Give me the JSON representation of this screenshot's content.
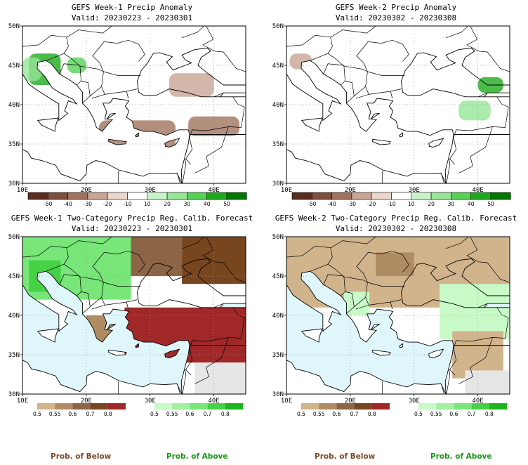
{
  "chart_data": [
    {
      "type": "heatmap",
      "title": "GEFS Week-1 Precip Anomaly",
      "subtitle": "Valid: 20230223 - 20230301",
      "x_ticks": [
        "10E",
        "20E",
        "30E",
        "40E"
      ],
      "y_ticks": [
        "50N",
        "45N",
        "40N",
        "35N",
        "30N"
      ],
      "xlim": [
        10,
        45
      ],
      "ylim": [
        30,
        50
      ],
      "colorbar_labels": [
        "-50",
        "-40",
        "-30",
        "-20",
        "-10",
        "10",
        "20",
        "30",
        "40",
        "50"
      ],
      "colorbar_colors": [
        "#5a2e1e",
        "#7d4f3c",
        "#a0735e",
        "#c8a595",
        "#ebd6cc",
        "#ffffff",
        "#c8f5c8",
        "#96e696",
        "#55d255",
        "#1eaa1e",
        "#007800"
      ],
      "regions": [
        {
          "lon": [
            11,
            16
          ],
          "lat": [
            42.5,
            46.5
          ],
          "level": 30
        },
        {
          "lon": [
            17,
            20
          ],
          "lat": [
            44,
            46
          ],
          "level": 20
        },
        {
          "lon": [
            10,
            13
          ],
          "lat": [
            43,
            46
          ],
          "level": 10
        },
        {
          "lon": [
            22,
            34
          ],
          "lat": [
            33,
            38
          ],
          "level": -20
        },
        {
          "lon": [
            36,
            44
          ],
          "lat": [
            36,
            38.5
          ],
          "level": -20
        },
        {
          "lon": [
            33,
            40
          ],
          "lat": [
            41,
            44
          ],
          "level": -10
        }
      ]
    },
    {
      "type": "heatmap",
      "title": "GEFS Week-2 Precip Anomaly",
      "subtitle": "Valid: 20230302 - 20230308",
      "x_ticks": [
        "10E",
        "20E",
        "30E",
        "40E"
      ],
      "y_ticks": [
        "50N",
        "45N",
        "40N",
        "35N",
        "30N"
      ],
      "xlim": [
        10,
        45
      ],
      "ylim": [
        30,
        50
      ],
      "colorbar_labels": [
        "-50",
        "-40",
        "-30",
        "-20",
        "-10",
        "10",
        "20",
        "30",
        "40",
        "50"
      ],
      "colorbar_colors": [
        "#5a2e1e",
        "#7d4f3c",
        "#a0735e",
        "#c8a595",
        "#ebd6cc",
        "#ffffff",
        "#c8f5c8",
        "#96e696",
        "#55d255",
        "#1eaa1e",
        "#007800"
      ],
      "regions": [
        {
          "lon": [
            40,
            44
          ],
          "lat": [
            41.5,
            43.5
          ],
          "level": 30
        },
        {
          "lon": [
            37,
            42
          ],
          "lat": [
            38,
            40.5
          ],
          "level": 10
        },
        {
          "lon": [
            10.5,
            14
          ],
          "lat": [
            44.5,
            46.5
          ],
          "level": -10
        }
      ]
    },
    {
      "type": "heatmap",
      "title": "GEFS Week-1 Two-Category Precip Reg. Calib. Forecast",
      "subtitle": "Valid: 20230223 - 20230301",
      "x_ticks": [
        "10E",
        "20E",
        "30E",
        "40E"
      ],
      "y_ticks": [
        "50N",
        "45N",
        "40N",
        "35N",
        "30N"
      ],
      "xlim": [
        10,
        45
      ],
      "ylim": [
        30,
        50
      ],
      "colorbar_below_labels": [
        "0.5",
        "0.55",
        "0.6",
        "0.7",
        "0.8"
      ],
      "colorbar_below_colors": [
        "#d2b48c",
        "#b08c64",
        "#8c6446",
        "#78461e",
        "#a02828"
      ],
      "colorbar_above_labels": [
        "0.5",
        "0.55",
        "0.6",
        "0.7",
        "0.8"
      ],
      "colorbar_above_colors": [
        "#c8fac8",
        "#a0f0a0",
        "#78e678",
        "#46d246",
        "#1eb41e"
      ],
      "regions": [
        {
          "lon": [
            10,
            27
          ],
          "lat": [
            42,
            50
          ],
          "category": "above",
          "prob": 0.6
        },
        {
          "lon": [
            11,
            16
          ],
          "lat": [
            43,
            47
          ],
          "category": "above",
          "prob": 0.7
        },
        {
          "lon": [
            27,
            35
          ],
          "lat": [
            45,
            50
          ],
          "category": "below",
          "prob": 0.6
        },
        {
          "lon": [
            35,
            45
          ],
          "lat": [
            44,
            50
          ],
          "category": "below",
          "prob": 0.7
        },
        {
          "lon": [
            26,
            45
          ],
          "lat": [
            34,
            41
          ],
          "category": "below",
          "prob": 0.8
        },
        {
          "lon": [
            20,
            26
          ],
          "lat": [
            36,
            40
          ],
          "category": "below",
          "prob": 0.55
        },
        {
          "lon": [
            37,
            45
          ],
          "lat": [
            30,
            34
          ],
          "category": "none",
          "prob": 0
        }
      ]
    },
    {
      "type": "heatmap",
      "title": "GEFS Week-2 Two-Category Precip Reg. Calib. Forecast",
      "subtitle": "Valid: 20230302 - 20230308",
      "x_ticks": [
        "10E",
        "20E",
        "30E",
        "40E"
      ],
      "y_ticks": [
        "50N",
        "45N",
        "40N",
        "35N",
        "30N"
      ],
      "xlim": [
        10,
        45
      ],
      "ylim": [
        30,
        50
      ],
      "colorbar_below_labels": [
        "0.5",
        "0.55",
        "0.6",
        "0.7",
        "0.8"
      ],
      "colorbar_below_colors": [
        "#d2b48c",
        "#b08c64",
        "#8c6446",
        "#78461e",
        "#a02828"
      ],
      "colorbar_above_labels": [
        "0.5",
        "0.55",
        "0.6",
        "0.7",
        "0.8"
      ],
      "colorbar_above_colors": [
        "#c8fac8",
        "#a0f0a0",
        "#78e678",
        "#46d246",
        "#1eb41e"
      ],
      "regions": [
        {
          "lon": [
            10,
            45
          ],
          "lat": [
            41,
            50
          ],
          "category": "below",
          "prob": 0.5
        },
        {
          "lon": [
            24,
            30
          ],
          "lat": [
            45,
            48
          ],
          "category": "below",
          "prob": 0.55
        },
        {
          "lon": [
            19,
            23
          ],
          "lat": [
            40,
            43
          ],
          "category": "above",
          "prob": 0.5
        },
        {
          "lon": [
            34,
            45
          ],
          "lat": [
            37,
            44
          ],
          "category": "above",
          "prob": 0.5
        },
        {
          "lon": [
            36,
            44
          ],
          "lat": [
            32,
            38
          ],
          "category": "below",
          "prob": 0.5
        },
        {
          "lon": [
            38,
            45
          ],
          "lat": [
            30,
            33
          ],
          "category": "none",
          "prob": 0
        }
      ]
    }
  ],
  "footer": {
    "below_label": "Prob. of Below",
    "above_label": "Prob. of Above",
    "below_color": "#7a4a2a",
    "above_color": "#1a9a1a"
  }
}
